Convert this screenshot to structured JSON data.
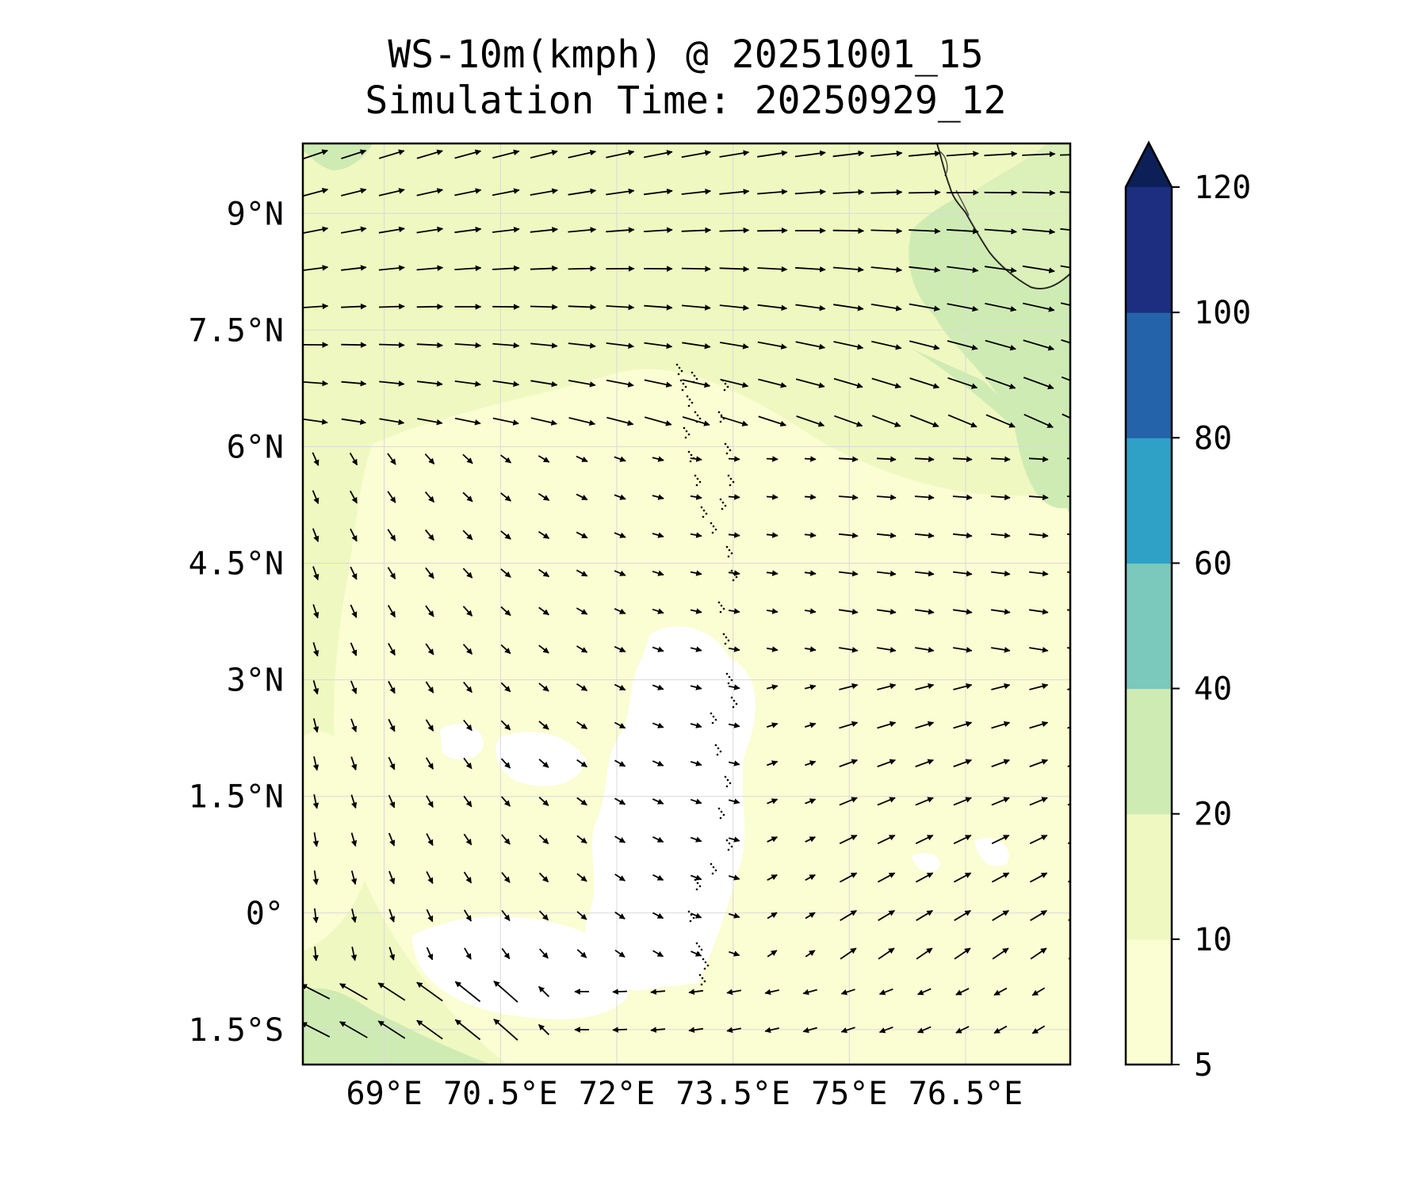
{
  "title": {
    "line1": "WS-10m(kmph) @ 20251001_15",
    "line2": "Simulation Time: 20250929_12"
  },
  "map": {
    "lon_range": [
      67.95,
      77.85
    ],
    "lat_range": [
      -1.95,
      9.9
    ],
    "x_tick_labels": [
      {
        "value": 69.0,
        "label": "69°E"
      },
      {
        "value": 70.5,
        "label": "70.5°E"
      },
      {
        "value": 72.0,
        "label": "72°E"
      },
      {
        "value": 73.5,
        "label": "73.5°E"
      },
      {
        "value": 75.0,
        "label": "75°E"
      },
      {
        "value": 76.5,
        "label": "76.5°E"
      }
    ],
    "y_tick_labels": [
      {
        "value": 9.0,
        "label": "9°N"
      },
      {
        "value": 7.5,
        "label": "7.5°N"
      },
      {
        "value": 6.0,
        "label": "6°N"
      },
      {
        "value": 4.5,
        "label": "4.5°N"
      },
      {
        "value": 3.0,
        "label": "3°N"
      },
      {
        "value": 1.5,
        "label": "1.5°N"
      },
      {
        "value": 0.0,
        "label": "0°"
      },
      {
        "value": -1.5,
        "label": "1.5°S"
      }
    ],
    "field_colors": {
      "below_5": "#ffffff",
      "5_10": "#fbfdd2",
      "10_20": "#eff8c0",
      "20_40": "#cfebb4"
    }
  },
  "colorbar": {
    "levels": [
      5,
      10,
      20,
      40,
      60,
      80,
      100,
      120
    ],
    "tick_labels": [
      "5",
      "10",
      "20",
      "40",
      "60",
      "80",
      "100",
      "120"
    ],
    "colors": [
      "#fbfdd2",
      "#eff8c0",
      "#cfebb4",
      "#7bc8bc",
      "#2fa1c6",
      "#2463a9",
      "#1d2e80"
    ],
    "extend_color": "#0c1f56"
  }
}
